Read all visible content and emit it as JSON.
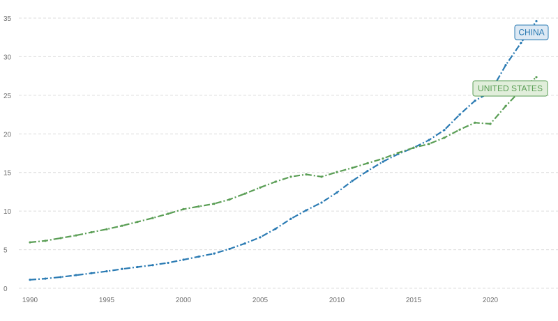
{
  "chart_data": {
    "type": "line",
    "x": [
      1990,
      1991,
      1992,
      1993,
      1994,
      1995,
      1996,
      1997,
      1998,
      1999,
      2000,
      2001,
      2002,
      2003,
      2004,
      2005,
      2006,
      2007,
      2008,
      2009,
      2010,
      2011,
      2012,
      2013,
      2014,
      2015,
      2016,
      2017,
      2018,
      2019,
      2020,
      2021,
      2022,
      2023
    ],
    "xlim": [
      1990,
      2023.5
    ],
    "ylim": [
      0,
      35
    ],
    "x_ticks": [
      "1990",
      "1995",
      "2000",
      "2005",
      "2010",
      "2015",
      "2020"
    ],
    "y_ticks": [
      "0",
      "5",
      "10",
      "15",
      "20",
      "25",
      "30",
      "35"
    ],
    "grid": "horizontal",
    "series": [
      {
        "name": "CHINA",
        "color": "#2b7bb3",
        "label_bg": "#dde9f4",
        "values": [
          1.1,
          1.25,
          1.45,
          1.7,
          1.95,
          2.2,
          2.5,
          2.75,
          3.0,
          3.3,
          3.7,
          4.1,
          4.5,
          5.1,
          5.8,
          6.6,
          7.7,
          9.0,
          10.1,
          11.1,
          12.4,
          13.9,
          15.2,
          16.4,
          17.4,
          18.2,
          19.2,
          20.5,
          22.5,
          24.3,
          25.4,
          28.9,
          31.8,
          34.6
        ]
      },
      {
        "name": "UNITED STATES",
        "color": "#5a9e55",
        "label_bg": "#e1eedb",
        "values": [
          5.95,
          6.15,
          6.5,
          6.85,
          7.25,
          7.65,
          8.1,
          8.6,
          9.1,
          9.65,
          10.25,
          10.6,
          10.95,
          11.5,
          12.25,
          13.05,
          13.8,
          14.45,
          14.75,
          14.45,
          15.05,
          15.6,
          16.2,
          16.8,
          17.55,
          18.2,
          18.7,
          19.5,
          20.55,
          21.45,
          21.3,
          23.6,
          25.7,
          27.35
        ]
      }
    ]
  }
}
